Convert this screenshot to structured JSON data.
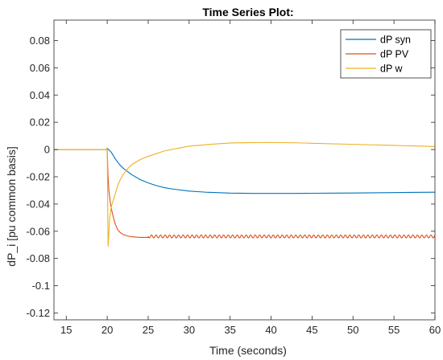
{
  "chart_data": {
    "type": "line",
    "title": "Time Series Plot:",
    "xlabel": "Time (seconds)",
    "ylabel": "dP_i [pu common basis]",
    "xlim": [
      13.5,
      60
    ],
    "ylim": [
      -0.125,
      0.095
    ],
    "xticks": [
      15,
      20,
      25,
      30,
      35,
      40,
      45,
      50,
      55,
      60
    ],
    "xtick_labels": [
      "15",
      "20",
      "25",
      "30",
      "35",
      "40",
      "45",
      "50",
      "55",
      "60"
    ],
    "yticks": [
      0.08,
      0.06,
      0.04,
      0.02,
      0,
      -0.02,
      -0.04,
      -0.06,
      -0.08,
      -0.1,
      -0.12
    ],
    "ytick_labels": [
      "0.08",
      "0.06",
      "0.04",
      "0.02",
      "0",
      "-0.02",
      "-0.04",
      "-0.06",
      "-0.08",
      "-0.1",
      "-0.12"
    ],
    "grid": false,
    "legend_position": "top-right",
    "series": [
      {
        "name": "dP syn",
        "color": "#0072BD",
        "x": [
          13.5,
          15,
          18,
          19.9,
          20.0,
          20.5,
          21,
          21.5,
          22,
          23,
          24,
          25,
          26,
          27,
          28,
          30,
          32,
          35,
          38,
          40,
          43,
          45,
          48,
          50,
          55,
          60
        ],
        "y": [
          0,
          0,
          0,
          0,
          0.001,
          -0.002,
          -0.007,
          -0.011,
          -0.014,
          -0.0185,
          -0.022,
          -0.0245,
          -0.0265,
          -0.028,
          -0.029,
          -0.0305,
          -0.0313,
          -0.032,
          -0.0322,
          -0.0322,
          -0.0322,
          -0.0321,
          -0.032,
          -0.0319,
          -0.0316,
          -0.0313
        ]
      },
      {
        "name": "dP PV",
        "color": "#D95319",
        "x": [
          13.5,
          15,
          18,
          19.9,
          20.0,
          20.05,
          20.1,
          20.2,
          20.4,
          20.6,
          20.8,
          21,
          21.3,
          21.6,
          22,
          22.5,
          23,
          23.5,
          24,
          25
        ],
        "y": [
          0,
          0,
          0,
          0,
          0.001,
          -0.01,
          -0.02,
          -0.03,
          -0.04,
          -0.046,
          -0.051,
          -0.055,
          -0.059,
          -0.061,
          -0.0625,
          -0.0635,
          -0.064,
          -0.0643,
          -0.0645,
          -0.0645
        ],
        "oscillation": {
          "start": 25,
          "end": 60,
          "center": -0.0638,
          "amplitude": 0.0011,
          "period": 0.55
        }
      },
      {
        "name": "dP w",
        "color": "#EDB120",
        "x": [
          13.5,
          15,
          18,
          19.9,
          20.0,
          20.1,
          20.2,
          20.3,
          20.5,
          20.8,
          21,
          21.3,
          21.6,
          22,
          22.5,
          23,
          24,
          25,
          27,
          30,
          33,
          35,
          37,
          40,
          43,
          45,
          50,
          55,
          60
        ],
        "y": [
          0,
          0,
          0,
          0,
          0.001,
          -0.071,
          -0.062,
          -0.05,
          -0.042,
          -0.036,
          -0.032,
          -0.026,
          -0.022,
          -0.018,
          -0.014,
          -0.011,
          -0.0075,
          -0.005,
          -0.001,
          0.0025,
          0.004,
          0.0048,
          0.005,
          0.0052,
          0.0049,
          0.0046,
          0.0038,
          0.003,
          0.0022
        ]
      }
    ]
  }
}
